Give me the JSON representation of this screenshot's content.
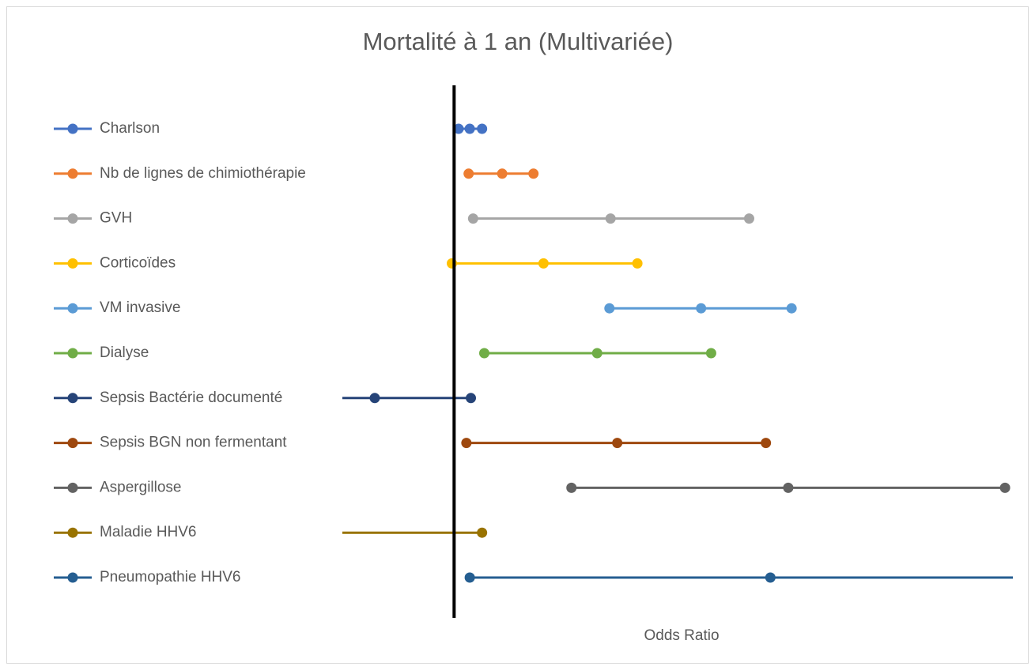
{
  "chart_data": {
    "type": "forest",
    "title": "Mortalité à 1 an (Multivariée)",
    "x_label": "Odds Ratio",
    "xlim": [
      0,
      6
    ],
    "reference_line": 1,
    "series": [
      {
        "name": "Charlson",
        "color": "#4472c4",
        "values": [
          1.04,
          1.14,
          1.25
        ]
      },
      {
        "name": "Nb de lignes de chimiothérapie",
        "color": "#ed7d31",
        "values": [
          1.13,
          1.43,
          1.71
        ]
      },
      {
        "name": "GVH",
        "color": "#a5a5a5",
        "values": [
          1.17,
          2.4,
          3.64
        ]
      },
      {
        "name": "Corticoïdes",
        "color": "#ffc000",
        "values": [
          0.98,
          1.8,
          2.64
        ]
      },
      {
        "name": "VM invasive",
        "color": "#5b9bd5",
        "values": [
          2.39,
          3.21,
          4.02
        ]
      },
      {
        "name": "Dialyse",
        "color": "#70ad47",
        "values": [
          1.27,
          2.28,
          3.3
        ]
      },
      {
        "name": "Sepsis Bactérie documenté",
        "color": "#264478",
        "values": [
          -0.1,
          0.29,
          1.15
        ]
      },
      {
        "name": "Sepsis BGN non fermentant",
        "color": "#9e480e",
        "values": [
          1.11,
          2.46,
          3.79
        ]
      },
      {
        "name": "Aspergillose",
        "color": "#636363",
        "values": [
          2.05,
          3.99,
          5.93
        ]
      },
      {
        "name": "Maladie HHV6",
        "color": "#997300",
        "values": [
          -0.6,
          -0.3,
          1.25
        ]
      },
      {
        "name": "Pneumopathie HHV6",
        "color": "#255e91",
        "values": [
          1.14,
          3.83,
          6.5
        ]
      }
    ]
  }
}
